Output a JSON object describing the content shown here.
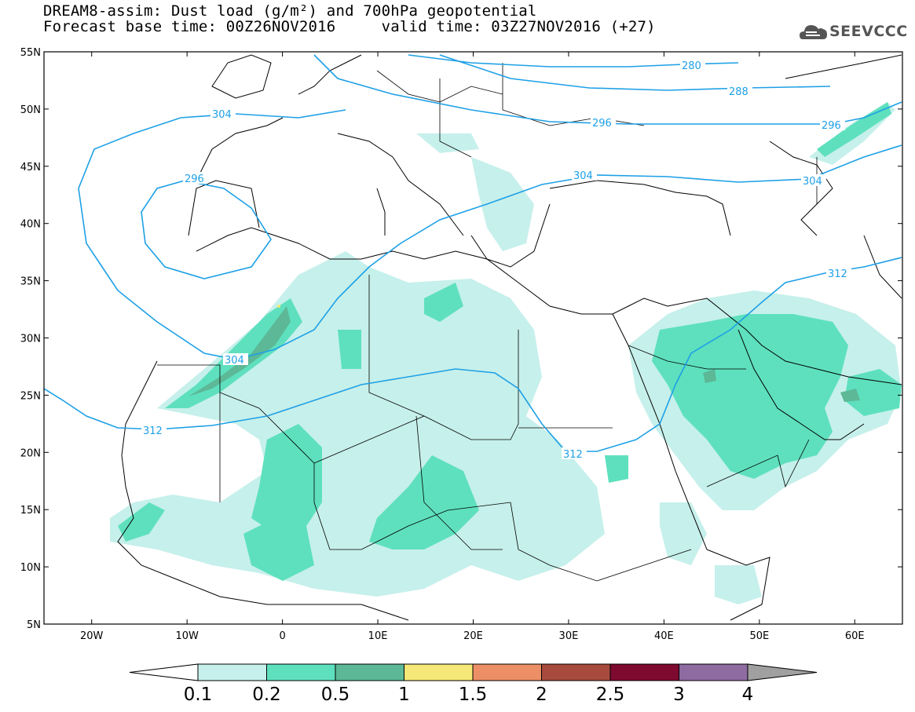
{
  "header": {
    "title_line1": "DREAM8-assim: Dust load (g/m²) and 700hPa geopotential",
    "title_line2": "Forecast base time: 00Z26NOV2016     valid time: 03Z27NOV2016 (+27)",
    "logo_text": "SEEVCCC",
    "logo_icon": "cloud-logo-icon"
  },
  "map": {
    "lon_range": [
      -25,
      65
    ],
    "lat_range": [
      5,
      55
    ],
    "x_ticks": [
      "20W",
      "10W",
      "0",
      "10E",
      "20E",
      "30E",
      "40E",
      "50E",
      "60E"
    ],
    "y_ticks": [
      "55N",
      "50N",
      "45N",
      "40N",
      "35N",
      "30N",
      "25N",
      "20N",
      "15N",
      "10N",
      "5N"
    ],
    "contour_color": "#1ea0e6",
    "contour_labels": [
      "280",
      "288",
      "296",
      "296",
      "304",
      "304",
      "304",
      "296",
      "304",
      "312",
      "312",
      "312"
    ]
  },
  "colorbar": {
    "labels": [
      "0.1",
      "0.2",
      "0.5",
      "1",
      "1.5",
      "2",
      "2.5",
      "3",
      "4"
    ],
    "colors": [
      "#c6f0eb",
      "#5ee0be",
      "#5cb896",
      "#f5e878",
      "#ec8f66",
      "#a84a3e",
      "#7e0a30",
      "#8e6ba0"
    ],
    "under_color": "#ffffff",
    "over_color": "#a0a0a0"
  }
}
